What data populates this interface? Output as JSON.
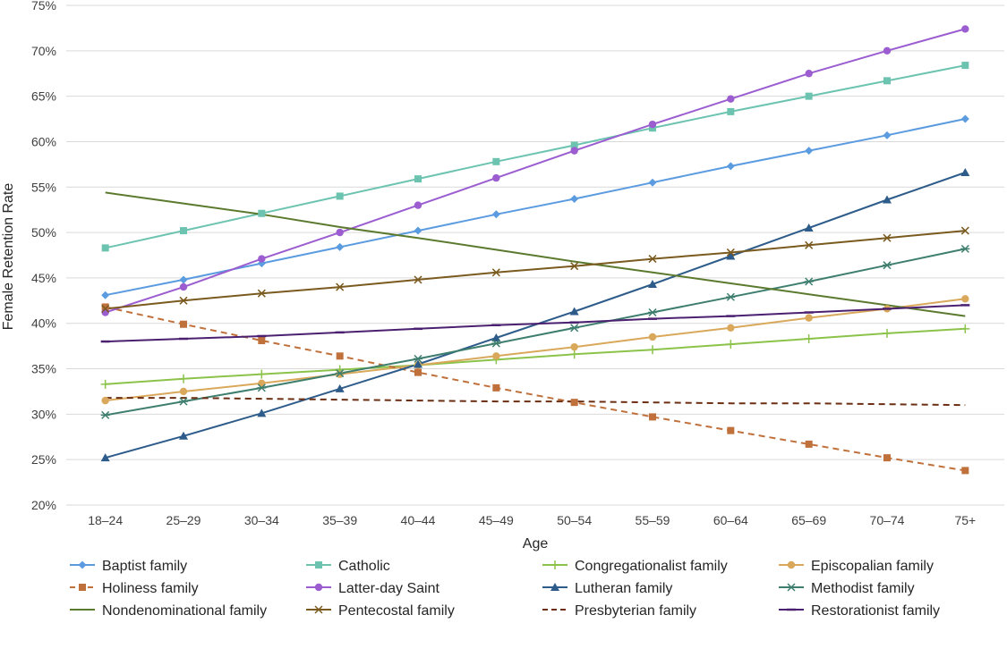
{
  "chart_data": {
    "type": "line",
    "xlabel": "Age",
    "ylabel": "Female Retention Rate",
    "categories": [
      "18–24",
      "25–29",
      "30–34",
      "35–39",
      "40–44",
      "45–49",
      "50–54",
      "55–59",
      "60–64",
      "65–69",
      "70–74",
      "75+"
    ],
    "y_ticks": [
      "20%",
      "25%",
      "30%",
      "35%",
      "40%",
      "45%",
      "50%",
      "55%",
      "60%",
      "65%",
      "70%",
      "75%"
    ],
    "ylim": [
      20,
      75
    ],
    "grid": "horizontal",
    "legend_position": "bottom",
    "series": [
      {
        "name": "Baptist family",
        "color": "#5B9BE0",
        "marker": "diamond",
        "dash": "solid",
        "values": [
          43.1,
          44.8,
          46.6,
          48.4,
          50.2,
          52.0,
          53.7,
          55.5,
          57.3,
          59.0,
          60.7,
          62.5
        ]
      },
      {
        "name": "Catholic",
        "color": "#6CC4B0",
        "marker": "square",
        "dash": "solid",
        "values": [
          48.3,
          50.2,
          52.1,
          54.0,
          55.9,
          57.8,
          59.6,
          61.5,
          63.3,
          65.0,
          66.7,
          68.4
        ]
      },
      {
        "name": "Congregationalist family",
        "color": "#8BC34A",
        "marker": "plus",
        "dash": "solid",
        "values": [
          33.3,
          33.9,
          34.4,
          34.9,
          35.4,
          36.0,
          36.6,
          37.1,
          37.7,
          38.3,
          38.9,
          39.4
        ]
      },
      {
        "name": "Episcopalian family",
        "color": "#D9A85B",
        "marker": "circle",
        "dash": "solid",
        "values": [
          31.5,
          32.5,
          33.4,
          34.4,
          35.4,
          36.4,
          37.4,
          38.5,
          39.5,
          40.6,
          41.6,
          42.7
        ]
      },
      {
        "name": "Holiness family",
        "color": "#C0703A",
        "marker": "square",
        "dash": "dashed",
        "values": [
          41.8,
          39.9,
          38.1,
          36.4,
          34.6,
          32.9,
          31.3,
          29.7,
          28.2,
          26.7,
          25.2,
          23.8
        ]
      },
      {
        "name": "Latter-day Saint",
        "color": "#9B5DD0",
        "marker": "circle",
        "dash": "solid",
        "values": [
          41.2,
          44.0,
          47.1,
          50.0,
          53.0,
          56.0,
          59.0,
          61.9,
          64.7,
          67.5,
          70.0,
          72.4
        ]
      },
      {
        "name": "Lutheran family",
        "color": "#2E5C8A",
        "marker": "triangle",
        "dash": "solid",
        "values": [
          25.2,
          27.6,
          30.1,
          32.8,
          35.5,
          38.4,
          41.3,
          44.3,
          47.4,
          50.5,
          53.6,
          56.6
        ]
      },
      {
        "name": "Methodist family",
        "color": "#3E7E6E",
        "marker": "star",
        "dash": "solid",
        "values": [
          29.9,
          31.4,
          32.9,
          34.5,
          36.1,
          37.8,
          39.5,
          41.2,
          42.9,
          44.6,
          46.4,
          48.2
        ]
      },
      {
        "name": "Nondenominational family",
        "color": "#5C7A2E",
        "marker": "none",
        "dash": "solid",
        "values": [
          54.4,
          53.2,
          52.0,
          50.6,
          49.4,
          48.1,
          46.8,
          45.6,
          44.4,
          43.2,
          42.0,
          40.8
        ]
      },
      {
        "name": "Pentecostal family",
        "color": "#7A5A1E",
        "marker": "x",
        "dash": "solid",
        "values": [
          41.6,
          42.5,
          43.3,
          44.0,
          44.8,
          45.6,
          46.3,
          47.1,
          47.8,
          48.6,
          49.4,
          50.2
        ]
      },
      {
        "name": "Presbyterian family",
        "color": "#6B2E12",
        "marker": "none",
        "dash": "dashed",
        "values": [
          31.8,
          31.8,
          31.7,
          31.6,
          31.5,
          31.4,
          31.4,
          31.3,
          31.2,
          31.2,
          31.1,
          31.0
        ]
      },
      {
        "name": "Restorationist family",
        "color": "#4B2070",
        "marker": "dash",
        "dash": "solid",
        "values": [
          38.0,
          38.3,
          38.6,
          39.0,
          39.4,
          39.8,
          40.1,
          40.5,
          40.8,
          41.2,
          41.6,
          42.0
        ]
      }
    ]
  }
}
